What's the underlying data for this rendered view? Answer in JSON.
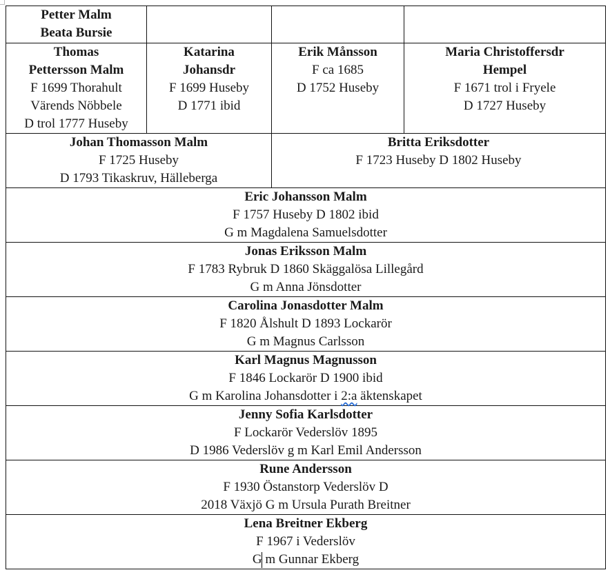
{
  "row1": {
    "names": [
      "Petter Malm",
      "Beata Bursie"
    ]
  },
  "row2": [
    {
      "name": [
        "Thomas",
        "Pettersson Malm"
      ],
      "lines": [
        "F 1699 Thorahult",
        "Värends Nöbbele",
        "D trol 1777 Huseby"
      ]
    },
    {
      "name": [
        "Katarina",
        "Johansdr"
      ],
      "lines": [
        "F 1699 Huseby",
        "D 1771 ibid"
      ]
    },
    {
      "name": [
        "Erik Månsson"
      ],
      "lines": [
        "F ca 1685",
        "D 1752 Huseby"
      ]
    },
    {
      "name": [
        "Maria Christoffersdr",
        "Hempel"
      ],
      "lines": [
        "F 1671 trol i Fryele",
        "D 1727 Huseby"
      ]
    }
  ],
  "row3": [
    {
      "name": "Johan Thomasson Malm",
      "lines": [
        "F 1725 Huseby",
        "D 1793 Tikaskruv, Hälleberga"
      ]
    },
    {
      "name": "Britta Eriksdotter",
      "lines": [
        "F 1723 Huseby D 1802 Huseby"
      ]
    }
  ],
  "generations": [
    {
      "name": "Eric Johansson Malm",
      "lines": [
        "F 1757 Huseby D 1802 ibid",
        "G m Magdalena Samuelsdotter"
      ]
    },
    {
      "name": "Jonas Eriksson Malm",
      "lines": [
        "F 1783 Rybruk D 1860 Skäggalösa Lillegård",
        "G m Anna Jönsdotter"
      ]
    },
    {
      "name": "Carolina Jonasdotter Malm",
      "lines": [
        "F 1820 Ålshult D 1893 Lockarör",
        "G m Magnus Carlsson"
      ]
    },
    {
      "name": "Karl Magnus Magnusson",
      "lines": [
        "F 1846 Lockarör D 1900 ibid"
      ],
      "spouse_parts": [
        "G m Karolina Johansdotter i ",
        "2:a",
        " äktenskapet"
      ]
    },
    {
      "name": "Jenny Sofia Karlsdotter",
      "lines": [
        "F Lockarör Vederslöv 1895",
        "D 1986 Vederslöv g m Karl Emil Andersson"
      ]
    },
    {
      "name": "Rune Andersson",
      "lines": [
        "F 1930 Östanstorp Vederslöv D",
        "2018 Växjö G m Ursula Purath Breitner"
      ]
    },
    {
      "name": "Lena Breitner Ekberg",
      "lines": [
        "F 1967 i Vederslöv",
        "G m Gunnar Ekberg"
      ]
    }
  ]
}
